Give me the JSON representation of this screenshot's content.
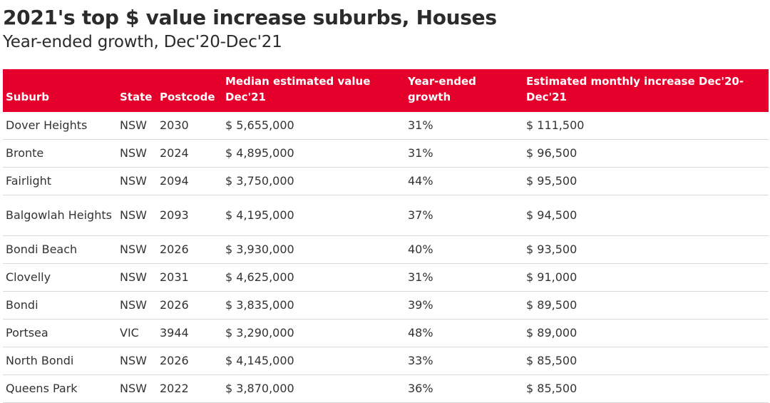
{
  "title": "2021's top $ value increase suburbs, Houses",
  "subtitle": "Year-ended growth, Dec'20-Dec'21",
  "chart_data": {
    "type": "table",
    "title": "2021's top $ value increase suburbs, Houses",
    "subtitle": "Year-ended growth, Dec'20-Dec'21",
    "header_color": "#e4002b",
    "columns": [
      "Suburb",
      "State",
      "Postcode",
      "Median estimated value Dec'21",
      "Year-ended growth",
      "Estimated monthly increase Dec'20-Dec'21"
    ],
    "rows": [
      [
        "Dover Heights",
        "NSW",
        "2030",
        "$ 5,655,000",
        "31%",
        "$ 111,500"
      ],
      [
        "Bronte",
        "NSW",
        "2024",
        "$ 4,895,000",
        "31%",
        "$ 96,500"
      ],
      [
        "Fairlight",
        "NSW",
        "2094",
        "$ 3,750,000",
        "44%",
        "$ 95,500"
      ],
      [
        "Balgowlah Heights",
        "NSW",
        "2093",
        "$ 4,195,000",
        "37%",
        "$ 94,500"
      ],
      [
        "Bondi Beach",
        "NSW",
        "2026",
        "$ 3,930,000",
        "40%",
        "$ 93,500"
      ],
      [
        "Clovelly",
        "NSW",
        "2031",
        "$ 4,625,000",
        "31%",
        "$ 91,000"
      ],
      [
        "Bondi",
        "NSW",
        "2026",
        "$ 3,835,000",
        "39%",
        "$ 89,500"
      ],
      [
        "Portsea",
        "VIC",
        "3944",
        "$ 3,290,000",
        "48%",
        "$ 89,000"
      ],
      [
        "North Bondi",
        "NSW",
        "2026",
        "$ 4,145,000",
        "33%",
        "$ 85,500"
      ],
      [
        "Queens Park",
        "NSW",
        "2022",
        "$ 3,870,000",
        "36%",
        "$ 85,500"
      ]
    ]
  }
}
